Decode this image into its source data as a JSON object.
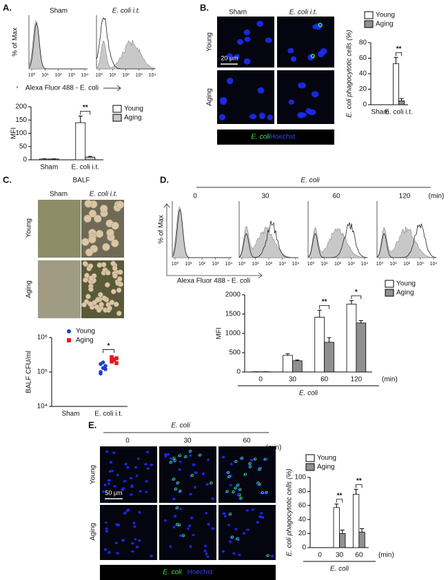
{
  "labels": {
    "a": "A.",
    "b": "B.",
    "c": "C.",
    "d": "D.",
    "e": "E."
  },
  "a": {
    "conditions": [
      "Sham",
      "E. coli i.t."
    ],
    "hist_ylabel": "% of Max",
    "hist_xlabel": "Alexa Fluor 488 - E. coli",
    "hist_ticks": [
      "10⁰",
      "10¹",
      "10²",
      "10³",
      "10⁴"
    ]
  },
  "b": {
    "columns": [
      "Sham",
      "E. coli i.t."
    ],
    "rows": [
      "Young",
      "Aging"
    ],
    "scale": "20 μm",
    "stain": [
      "E. coli",
      "Hoechst"
    ]
  },
  "c": {
    "title": "BALF",
    "columns": [
      "Sham",
      "E. coli i.t."
    ],
    "rows": [
      "Young",
      "Aging"
    ]
  },
  "d": {
    "group": "E. coli",
    "times": [
      "0",
      "30",
      "60",
      "120"
    ],
    "unit": "(min)",
    "hist_ylabel": "% of Max",
    "hist_xlabel": "Alexa Fluor 488 - E. coli",
    "hist_ticks": [
      "10⁰",
      "10¹",
      "10²",
      "10³",
      "10⁴"
    ]
  },
  "e": {
    "group": "E. coli",
    "times": [
      "0",
      "30",
      "60"
    ],
    "unit": "(min)",
    "rows": [
      "Young",
      "Aging"
    ],
    "scale": "50 μm",
    "stain": [
      "E. coli",
      "Hoechst"
    ]
  },
  "chart_data": [
    {
      "type": "bar",
      "ylabel": "MFI",
      "categories": [
        "Sham",
        "E. coli i.t."
      ],
      "series": [
        {
          "name": "Young",
          "color": "#ffffff",
          "values": [
            3,
            140
          ],
          "errors": [
            1,
            25
          ]
        },
        {
          "name": "Aging",
          "color": "#c8c8c8",
          "values": [
            3,
            10
          ],
          "errors": [
            1,
            3
          ]
        }
      ],
      "ylim": [
        0,
        200
      ],
      "yticks": [
        0,
        50,
        100,
        150,
        200
      ],
      "annotations": [
        null,
        "**"
      ]
    },
    {
      "type": "bar",
      "ylabel": "E. coli phagocytotic cells (%)",
      "categories": [
        "Sham",
        "E. coli i.t."
      ],
      "series": [
        {
          "name": "Young",
          "color": "#ffffff",
          "values": [
            0,
            53
          ],
          "errors": [
            0,
            8
          ]
        },
        {
          "name": "Aging",
          "color": "#909090",
          "values": [
            0,
            5
          ],
          "errors": [
            0,
            3
          ]
        }
      ],
      "ylim": [
        0,
        80
      ],
      "yticks": [
        0,
        20,
        40,
        60,
        80
      ],
      "annotations": [
        null,
        "**"
      ]
    },
    {
      "type": "scatter",
      "ylabel": "BALF CFU/ml",
      "categories": [
        "Sham",
        "E. coli i.t."
      ],
      "log_scale": true,
      "series": [
        {
          "name": "Young",
          "color": "#1f3fd0",
          "values": [
            100000,
            130000,
            150000,
            170000,
            190000,
            120000,
            90000
          ]
        },
        {
          "name": "Aging",
          "color": "#e8191d",
          "values": [
            200000,
            230000,
            250000,
            270000,
            220000,
            180000,
            240000
          ]
        }
      ],
      "ylim": [
        10000,
        1000000
      ],
      "yticks": [
        {
          "value": 10000,
          "label": "10⁴"
        },
        {
          "value": 100000,
          "label": "10⁵"
        },
        {
          "value": 1000000,
          "label": "10⁶"
        }
      ],
      "annotations": [
        null,
        "*"
      ]
    },
    {
      "type": "bar",
      "ylabel": "MFI",
      "categories": [
        "0",
        "30",
        "60",
        "120"
      ],
      "xlabel": "E. coli",
      "xunit": "(min)",
      "series": [
        {
          "name": "Young",
          "color": "#ffffff",
          "values": [
            5,
            430,
            1420,
            1760
          ],
          "errors": [
            0,
            40,
            180,
            90
          ]
        },
        {
          "name": "Aging",
          "color": "#909090",
          "values": [
            5,
            290,
            770,
            1270
          ],
          "errors": [
            0,
            20,
            120,
            60
          ]
        }
      ],
      "ylim": [
        0,
        2000
      ],
      "yticks": [
        0,
        500,
        1000,
        1500,
        2000
      ],
      "annotations": [
        null,
        null,
        "**",
        "*"
      ]
    },
    {
      "type": "bar",
      "ylabel": "E. coli phagocytotic cells (%)",
      "categories": [
        "0",
        "30",
        "60"
      ],
      "xlabel": "E. coli",
      "xunit": "(min)",
      "series": [
        {
          "name": "Young",
          "color": "#ffffff",
          "values": [
            0,
            57,
            76
          ],
          "errors": [
            0,
            5,
            7
          ]
        },
        {
          "name": "Aging",
          "color": "#909090",
          "values": [
            0,
            20,
            22
          ],
          "errors": [
            0,
            5,
            5
          ]
        }
      ],
      "ylim": [
        0,
        100
      ],
      "yticks": [
        0,
        20,
        40,
        60,
        80,
        100
      ],
      "annotations": [
        null,
        "**",
        "**"
      ]
    }
  ]
}
